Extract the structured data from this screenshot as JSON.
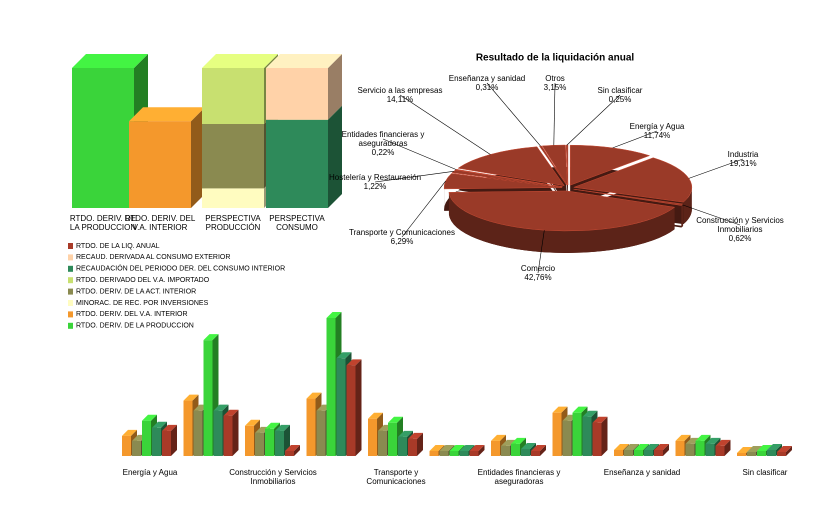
{
  "chart_data": [
    {
      "type": "bar",
      "stacked": true,
      "categories": [
        "RTDO. DERIV. DE LA PRODUCCION",
        "RTDO. DERIV. DEL V.A. INTERIOR",
        "PERSPECTIVA PRODUCCIÓN",
        "PERSPECTIVA CONSUMO"
      ],
      "series": [
        {
          "name": "RTDO. DE LA LIQ. ANUAL",
          "color": "#a83a28",
          "values": [
            null,
            null,
            null,
            null
          ]
        },
        {
          "name": "RECAUD. DERIVADA AL CONSUMO EXTERIOR",
          "color": "#ffd2a8",
          "values": [
            null,
            null,
            null,
            37
          ]
        },
        {
          "name": "RECAUDACIÓN DEL PERIODO DER. DEL CONSUMO INTERIOR",
          "color": "#2e8a5a",
          "values": [
            null,
            null,
            null,
            63
          ]
        },
        {
          "name": "RTDO. DERIVADO DEL V.A. IMPORTADO",
          "color": "#c8e070",
          "values": [
            null,
            null,
            40,
            null
          ]
        },
        {
          "name": "RTDO. DERIV. DE LA ACT. INTERIOR",
          "color": "#8a8a50",
          "values": [
            null,
            null,
            46,
            null
          ]
        },
        {
          "name": "MINORAC. DE REC. POR INVERSIONES",
          "color": "#fffcc0",
          "values": [
            null,
            null,
            14,
            null
          ]
        },
        {
          "name": "RTDO. DERIV. DEL V.A. INTERIOR",
          "color": "#f4982c",
          "values": [
            null,
            62,
            null,
            null
          ]
        },
        {
          "name": "RTDO. DERIV. DE LA PRODUCCION",
          "color": "#3ad43a",
          "values": [
            100,
            null,
            null,
            null
          ]
        }
      ]
    },
    {
      "type": "pie",
      "title": "Resultado de la liquidación anual",
      "color": "#9a3a28",
      "categories": [
        "Energía y Agua",
        "Industria",
        "Construcción y Servicios Inmobiliarios",
        "Comercio",
        "Transporte y Comunicaciones",
        "Hostelería y Restauración",
        "Entidades financieras y aseguradoras",
        "Servicio a las empresas",
        "Enseñanza y sanidad",
        "Otros",
        "Sin clasificar"
      ],
      "values": [
        11.74,
        19.31,
        0.62,
        42.76,
        6.29,
        1.22,
        0.22,
        14.11,
        0.31,
        3.15,
        0.25
      ],
      "value_labels": [
        "11,74%",
        "19,31%",
        "0,62%",
        "42,76%",
        "6,29%",
        "1,22%",
        "0,22%",
        "14,11%",
        "0,31%",
        "3,15%",
        "0,25%"
      ]
    },
    {
      "type": "bar",
      "categories": [
        "Energía y Agua",
        null,
        "Construcción y Servicios Inmobiliarios",
        null,
        "Transporte y Comunicaciones",
        null,
        "Entidades financieras y aseguradoras",
        null,
        "Enseñanza y sanidad",
        null,
        "Sin clasificar"
      ],
      "series": [
        {
          "color": "#f4982c",
          "values": [
            20,
            55,
            30,
            57,
            37,
            5,
            15,
            43,
            6,
            15,
            3
          ]
        },
        {
          "color": "#8a8a50",
          "values": [
            15,
            45,
            23,
            45,
            25,
            5,
            10,
            35,
            6,
            12,
            4
          ]
        },
        {
          "color": "#3ad43a",
          "values": [
            35,
            115,
            27,
            137,
            33,
            5,
            12,
            43,
            6,
            15,
            5
          ]
        },
        {
          "color": "#2e8a5a",
          "values": [
            28,
            45,
            25,
            97,
            19,
            5,
            7,
            39,
            6,
            12,
            6
          ]
        },
        {
          "color": "#a83a28",
          "values": [
            25,
            40,
            5,
            90,
            17,
            5,
            5,
            33,
            6,
            10,
            4
          ]
        }
      ]
    }
  ]
}
